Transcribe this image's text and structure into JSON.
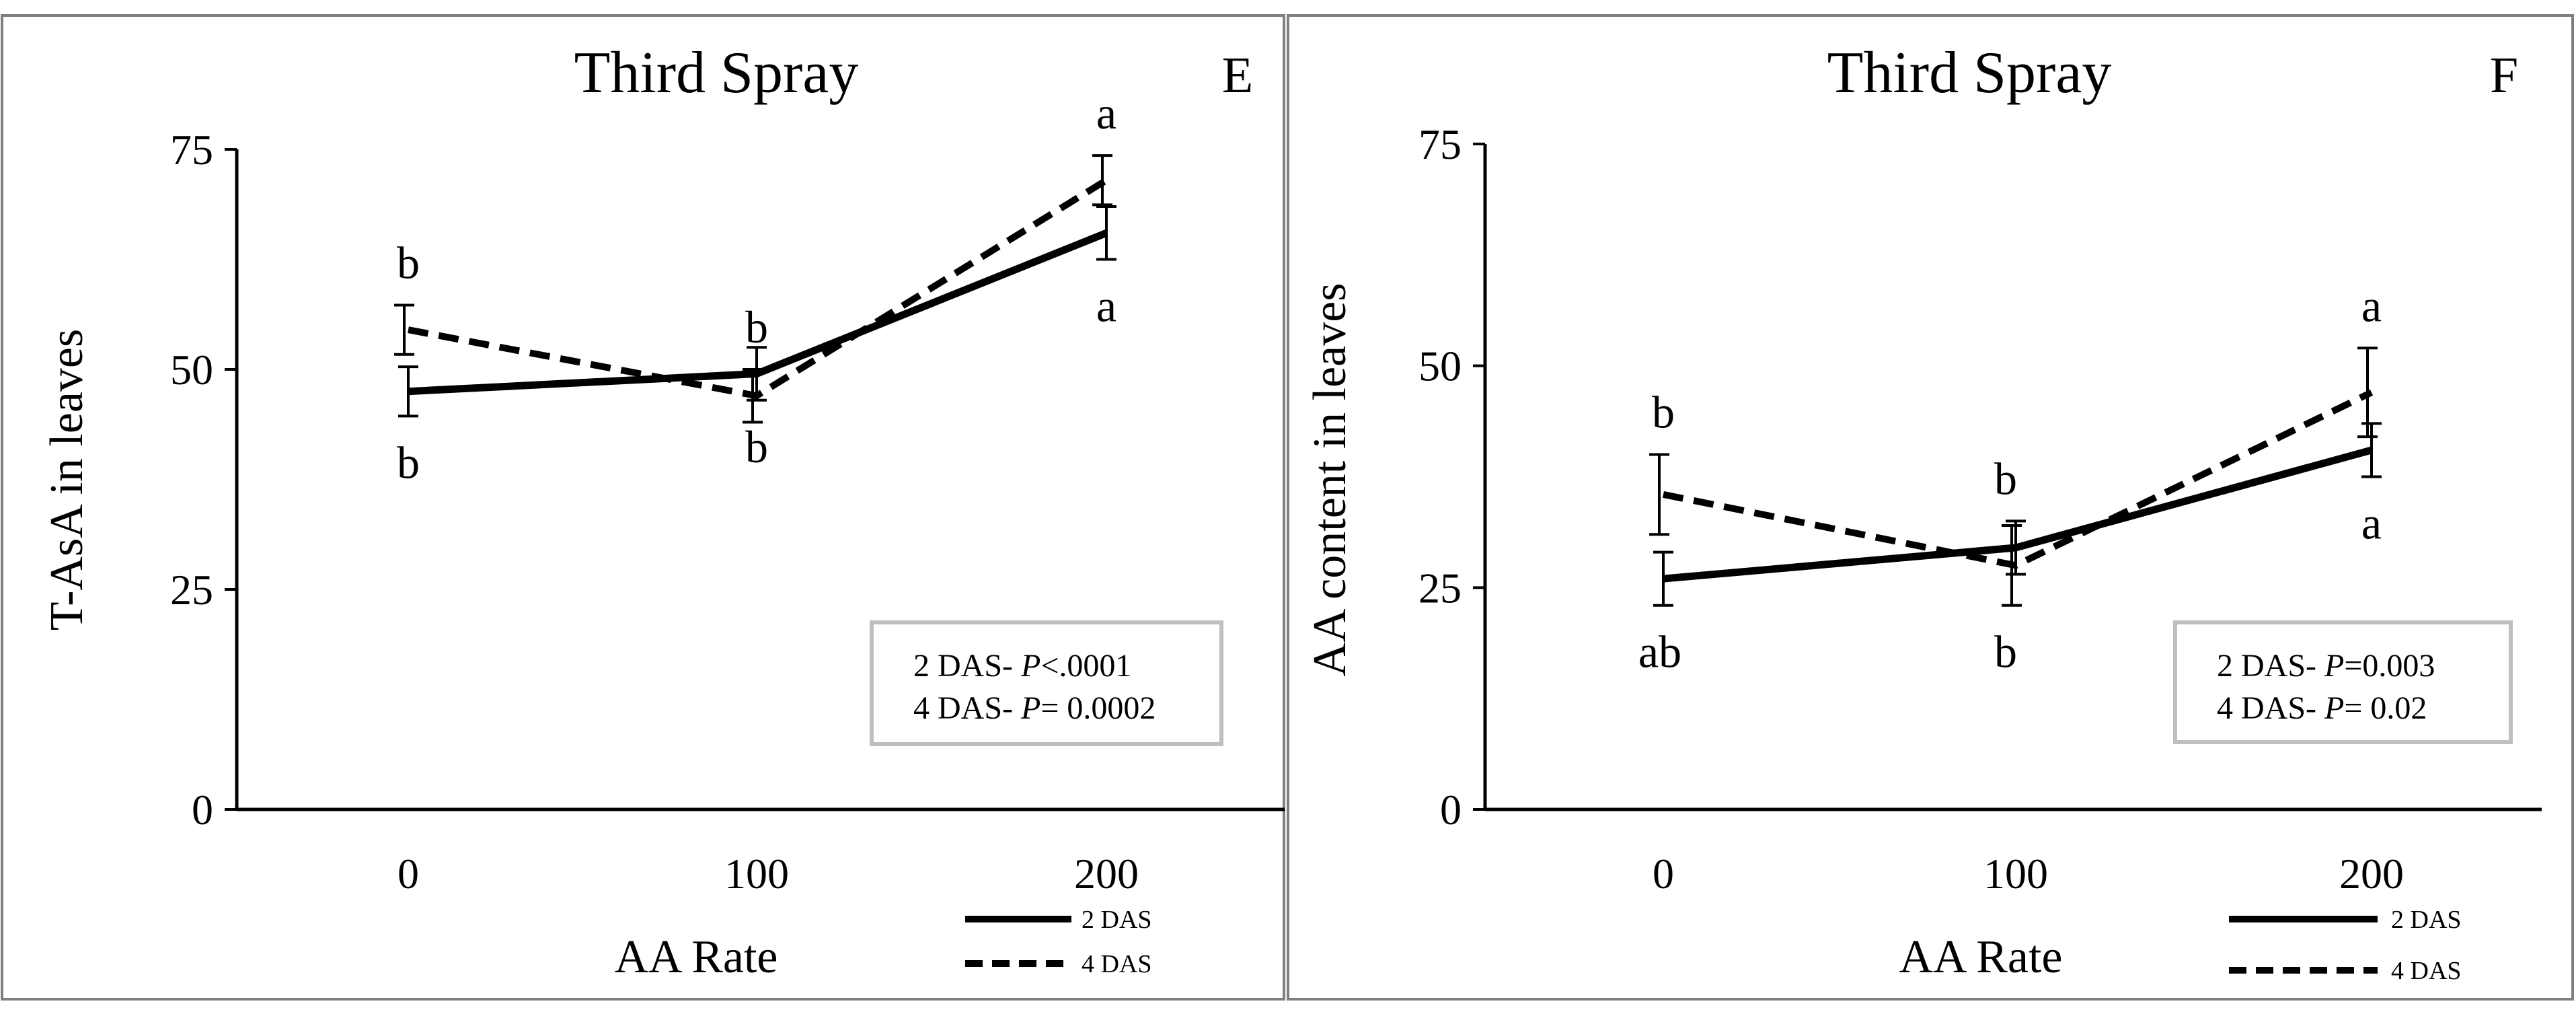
{
  "figure": {
    "colors": {
      "line": "#000000",
      "frame": "#7f7f7f",
      "box": "#bfbfbf",
      "background": "#ffffff"
    }
  },
  "chart_data": [
    {
      "type": "line",
      "title": "Third Spray",
      "panel_label": "E",
      "xlabel": "AA Rate",
      "ylabel": "T-AsA in leaves",
      "categories": [
        "0",
        "100",
        "200"
      ],
      "ylim": [
        0,
        75
      ],
      "yticks": [
        "0",
        "25",
        "50",
        "75"
      ],
      "series": [
        {
          "name": "2 DAS",
          "style": "solid",
          "values": [
            47.5,
            49.5,
            65.5
          ],
          "errors": [
            2.8,
            3.0,
            3.0
          ],
          "letters": [
            "b",
            "b",
            "a"
          ]
        },
        {
          "name": "4 DAS",
          "style": "dashed",
          "values": [
            54.5,
            47.0,
            71.5
          ],
          "errors": [
            2.8,
            3.0,
            2.8
          ],
          "letters": [
            "b",
            "b",
            "a"
          ]
        }
      ],
      "stats_lines": [
        {
          "prefix": "2 DAS- ",
          "p": "P",
          "value": "<.0001"
        },
        {
          "prefix": "4 DAS- ",
          "p": "P",
          "value": "= 0.0002"
        }
      ]
    },
    {
      "type": "line",
      "title": "Third Spray",
      "panel_label": "F",
      "xlabel": "AA Rate",
      "ylabel": "AA content in leaves",
      "categories": [
        "0",
        "100",
        "200"
      ],
      "ylim": [
        0,
        75
      ],
      "yticks": [
        "0",
        "25",
        "50",
        "75"
      ],
      "series": [
        {
          "name": "2 DAS",
          "style": "solid",
          "values": [
            26.0,
            29.5,
            40.5
          ],
          "errors": [
            3.0,
            3.0,
            3.0
          ],
          "letters": [
            "ab",
            "b",
            "a"
          ]
        },
        {
          "name": "4 DAS",
          "style": "dashed",
          "values": [
            35.5,
            27.5,
            47.0
          ],
          "errors": [
            4.5,
            4.5,
            5.0
          ],
          "letters": [
            "b",
            "b",
            "a"
          ]
        }
      ],
      "stats_lines": [
        {
          "prefix": "2 DAS- ",
          "p": "P",
          "value": "=0.003"
        },
        {
          "prefix": "4 DAS- ",
          "p": "P",
          "value": "= 0.02"
        }
      ]
    }
  ]
}
